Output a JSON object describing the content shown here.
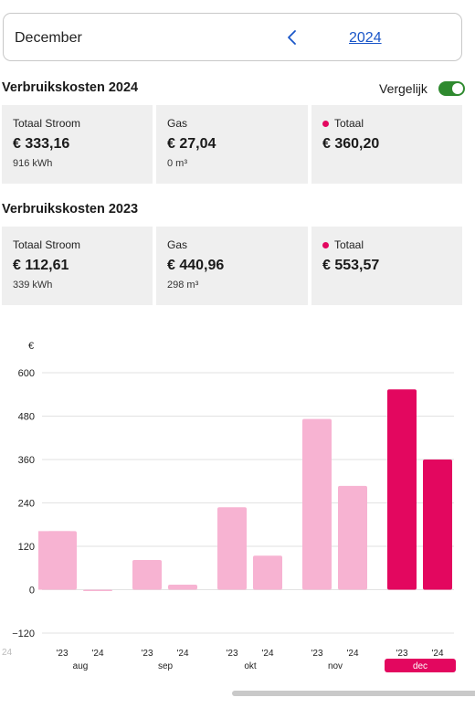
{
  "period": {
    "month": "December",
    "year": "2024"
  },
  "current": {
    "title": "Verbruikskosten 2024",
    "compare_label": "Vergelijk",
    "compare_on": true,
    "tiles": [
      {
        "label": "Totaal Stroom",
        "value": "€ 333,16",
        "sub": "916 kWh"
      },
      {
        "label": "Gas",
        "value": "€ 27,04",
        "sub": "0 m³"
      },
      {
        "label": "Totaal",
        "value": "€ 360,20",
        "sub": ""
      }
    ]
  },
  "previous": {
    "title": "Verbruikskosten 2023",
    "tiles": [
      {
        "label": "Totaal Stroom",
        "value": "€ 112,61",
        "sub": "339 kWh"
      },
      {
        "label": "Gas",
        "value": "€ 440,96",
        "sub": "298 m³"
      },
      {
        "label": "Totaal",
        "value": "€ 553,57",
        "sub": ""
      }
    ]
  },
  "colors": {
    "accent": "#e3075f",
    "light": "#f7b3d2",
    "toggle": "#2f8a2f",
    "link": "#1a56c8"
  },
  "chart_data": {
    "type": "bar",
    "ylabel": "€",
    "ylim": [
      -120,
      600
    ],
    "yticks": [
      -120,
      0,
      120,
      240,
      360,
      480,
      600
    ],
    "categories": [
      "aug",
      "sep",
      "okt",
      "nov",
      "dec"
    ],
    "series_labels": [
      "'23",
      "'24"
    ],
    "selected": "dec",
    "left_partial_label": "24",
    "left_partial_value": 162,
    "values": [
      {
        "month": "aug",
        "v23": 162,
        "v24": -3
      },
      {
        "month": "sep",
        "v23": 82,
        "v24": 14
      },
      {
        "month": "okt",
        "v23": 228,
        "v24": 94
      },
      {
        "month": "nov",
        "v23": 472,
        "v24": 287
      },
      {
        "month": "dec",
        "v23": 554,
        "v24": 360
      }
    ]
  }
}
